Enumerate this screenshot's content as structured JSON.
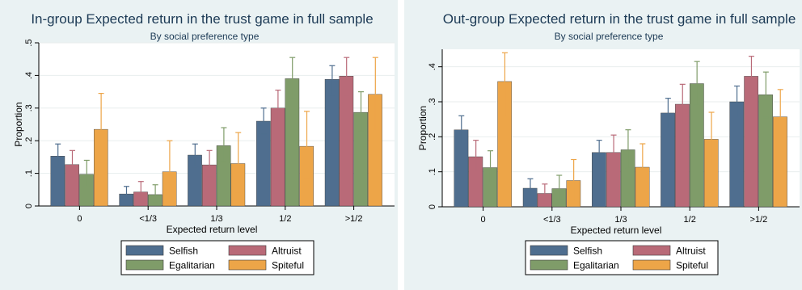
{
  "colors": {
    "Selfish": "#4f6e8f",
    "Altruist": "#b96a78",
    "Egalitarian": "#7f9c69",
    "Spiteful": "#eda548"
  },
  "chart_data": [
    {
      "type": "bar",
      "title": "In-group Expected return in the trust game in full sample",
      "subtitle": "By social preference type",
      "xlabel": "Expected return level",
      "ylabel": "Proportion",
      "ylim": [
        0,
        0.5
      ],
      "yticks": [
        0,
        0.1,
        0.2,
        0.3,
        0.4,
        0.5
      ],
      "ytick_labels": [
        "0",
        ".1",
        ".2",
        ".3",
        ".4",
        ".5"
      ],
      "categories": [
        "0",
        "<1/3",
        "1/3",
        "1/2",
        ">1/2"
      ],
      "legend": "bottom",
      "series": [
        {
          "name": "Selfish",
          "values": [
            0.153,
            0.037,
            0.156,
            0.26,
            0.388
          ],
          "ci_low": [
            0.12,
            0.02,
            0.12,
            0.22,
            0.34
          ],
          "ci_high": [
            0.19,
            0.06,
            0.19,
            0.3,
            0.43
          ]
        },
        {
          "name": "Altruist",
          "values": [
            0.127,
            0.043,
            0.126,
            0.3,
            0.398
          ],
          "ci_low": [
            0.09,
            0.02,
            0.09,
            0.25,
            0.34
          ],
          "ci_high": [
            0.17,
            0.075,
            0.17,
            0.355,
            0.455
          ]
        },
        {
          "name": "Egalitarian",
          "values": [
            0.097,
            0.035,
            0.185,
            0.39,
            0.287
          ],
          "ci_low": [
            0.06,
            0.01,
            0.135,
            0.33,
            0.23
          ],
          "ci_high": [
            0.14,
            0.065,
            0.24,
            0.455,
            0.35
          ]
        },
        {
          "name": "Spiteful",
          "values": [
            0.235,
            0.105,
            0.13,
            0.183,
            0.342
          ],
          "ci_low": [
            0.135,
            0.02,
            0.04,
            0.085,
            0.23
          ],
          "ci_high": [
            0.345,
            0.2,
            0.225,
            0.29,
            0.455
          ]
        }
      ]
    },
    {
      "type": "bar",
      "title": "Out-group Expected return in the trust game in full sample",
      "subtitle": "By social preference type",
      "xlabel": "Expected return level",
      "ylabel": "Proportion",
      "ylim": [
        0,
        0.45
      ],
      "yticks": [
        0,
        0.1,
        0.2,
        0.3,
        0.4
      ],
      "ytick_labels": [
        "0",
        ".1",
        ".2",
        ".3",
        ".4"
      ],
      "categories": [
        "0",
        "<1/3",
        "1/3",
        "1/2",
        ">1/2"
      ],
      "legend": "bottom",
      "series": [
        {
          "name": "Selfish",
          "values": [
            0.22,
            0.053,
            0.155,
            0.268,
            0.3
          ],
          "ci_low": [
            0.18,
            0.03,
            0.12,
            0.225,
            0.255
          ],
          "ci_high": [
            0.26,
            0.08,
            0.19,
            0.31,
            0.345
          ]
        },
        {
          "name": "Altruist",
          "values": [
            0.143,
            0.038,
            0.155,
            0.293,
            0.373
          ],
          "ci_low": [
            0.1,
            0.015,
            0.105,
            0.235,
            0.315
          ],
          "ci_high": [
            0.19,
            0.065,
            0.205,
            0.35,
            0.43
          ]
        },
        {
          "name": "Egalitarian",
          "values": [
            0.112,
            0.052,
            0.163,
            0.352,
            0.32
          ],
          "ci_low": [
            0.07,
            0.02,
            0.11,
            0.29,
            0.255
          ],
          "ci_high": [
            0.16,
            0.09,
            0.22,
            0.415,
            0.385
          ]
        },
        {
          "name": "Spiteful",
          "values": [
            0.358,
            0.075,
            0.113,
            0.193,
            0.257
          ],
          "ci_low": [
            0.26,
            0.02,
            0.05,
            0.12,
            0.175
          ],
          "ci_high": [
            0.44,
            0.135,
            0.18,
            0.27,
            0.335
          ]
        }
      ]
    }
  ]
}
